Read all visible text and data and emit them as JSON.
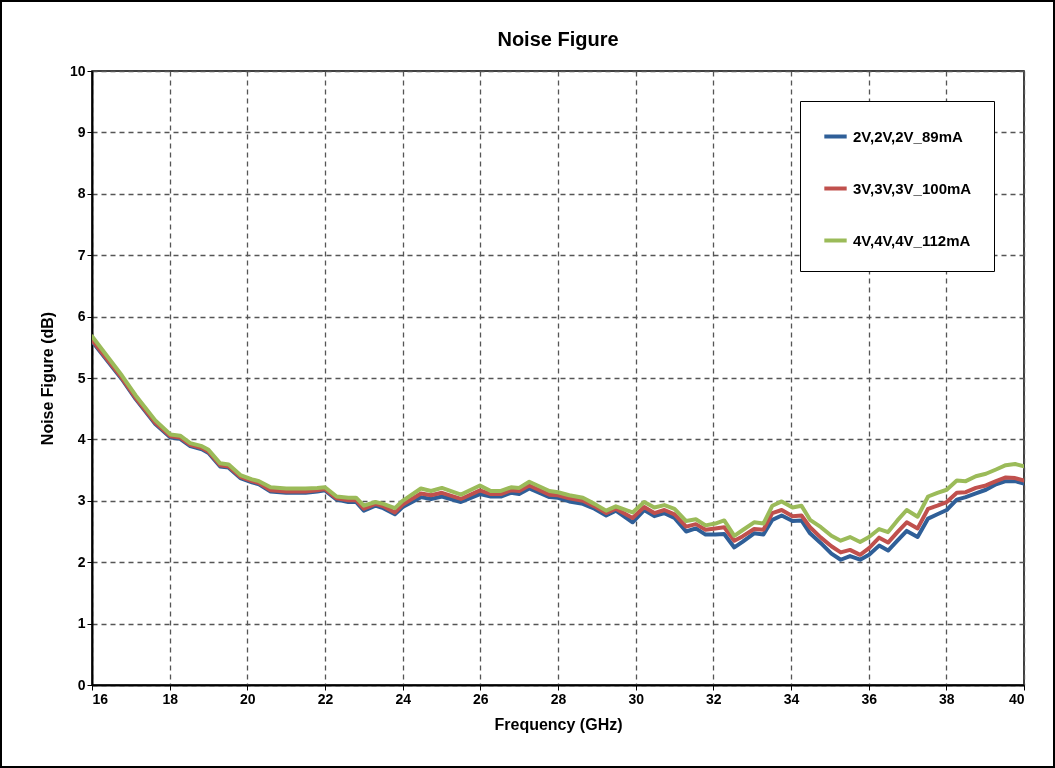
{
  "chart_data": {
    "type": "line",
    "title": "Noise Figure",
    "xlabel": "Frequency (GHz)",
    "ylabel": "Noise Figure (dB)",
    "x": [
      16,
      16.77,
      17.12,
      17.63,
      18.02,
      18.27,
      18.53,
      18.83,
      19.0,
      19.3,
      19.52,
      19.82,
      20.12,
      20.3,
      20.6,
      21,
      21.5,
      21.8,
      22,
      22.3,
      22.6,
      22.8,
      23,
      23.3,
      23.5,
      23.8,
      24.0,
      24.47,
      24.73,
      25.01,
      25.5,
      25.99,
      26.27,
      26.53,
      26.79,
      27.0,
      27.26,
      27.78,
      28.0,
      28.29,
      28.64,
      28.94,
      29.24,
      29.49,
      29.92,
      30.22,
      30.48,
      30.74,
      31.0,
      31.3,
      31.55,
      31.8,
      32.05,
      32.28,
      32.54,
      32.75,
      33.05,
      33.29,
      33.52,
      33.76,
      34.04,
      34.27,
      34.49,
      34.77,
      35.04,
      35.28,
      35.52,
      35.78,
      36.01,
      36.27,
      36.5,
      36.74,
      36.98,
      37.26,
      37.53,
      37.77,
      38.01,
      38.27,
      38.5,
      38.76,
      39.02,
      39.28,
      39.53,
      39.77,
      40
    ],
    "series": [
      {
        "name": "2V,2V,2V_89mA",
        "color": "#2f5f98",
        "values": [
          5.6,
          4.98,
          4.66,
          4.25,
          4.03,
          4.01,
          3.89,
          3.84,
          3.78,
          3.56,
          3.54,
          3.37,
          3.3,
          3.27,
          3.15,
          3.13,
          3.13,
          3.15,
          3.17,
          3.02,
          2.98,
          2.98,
          2.84,
          2.92,
          2.88,
          2.78,
          2.9,
          3.06,
          3.03,
          3.07,
          2.98,
          3.11,
          3.07,
          3.07,
          3.13,
          3.11,
          3.2,
          3.06,
          3.05,
          2.99,
          2.95,
          2.87,
          2.76,
          2.84,
          2.65,
          2.85,
          2.75,
          2.8,
          2.72,
          2.5,
          2.55,
          2.45,
          2.45,
          2.46,
          2.24,
          2.33,
          2.47,
          2.45,
          2.69,
          2.76,
          2.67,
          2.68,
          2.47,
          2.31,
          2.14,
          2.04,
          2.1,
          2.04,
          2.12,
          2.27,
          2.19,
          2.35,
          2.51,
          2.41,
          2.71,
          2.78,
          2.85,
          3.02,
          3.06,
          3.12,
          3.18,
          3.27,
          3.32,
          3.32,
          3.28
        ]
      },
      {
        "name": "3V,3V,3V_100mA",
        "color": "#c0504d",
        "values": [
          5.62,
          5.0,
          4.68,
          4.27,
          4.05,
          4.03,
          3.91,
          3.86,
          3.8,
          3.58,
          3.56,
          3.39,
          3.32,
          3.29,
          3.17,
          3.15,
          3.15,
          3.17,
          3.19,
          3.04,
          3.01,
          3.01,
          2.87,
          2.95,
          2.91,
          2.81,
          2.94,
          3.12,
          3.09,
          3.13,
          3.03,
          3.17,
          3.11,
          3.11,
          3.17,
          3.16,
          3.25,
          3.1,
          3.09,
          3.04,
          3.0,
          2.91,
          2.8,
          2.87,
          2.72,
          2.9,
          2.8,
          2.85,
          2.78,
          2.58,
          2.62,
          2.53,
          2.55,
          2.57,
          2.35,
          2.42,
          2.54,
          2.53,
          2.8,
          2.85,
          2.75,
          2.76,
          2.57,
          2.4,
          2.26,
          2.16,
          2.2,
          2.12,
          2.23,
          2.4,
          2.32,
          2.49,
          2.65,
          2.55,
          2.87,
          2.92,
          2.98,
          3.13,
          3.14,
          3.21,
          3.25,
          3.32,
          3.38,
          3.37,
          3.33
        ]
      },
      {
        "name": "4V,4V,4V_112mA",
        "color": "#9bbb59",
        "values": [
          5.68,
          5.04,
          4.72,
          4.31,
          4.08,
          4.06,
          3.94,
          3.89,
          3.83,
          3.61,
          3.59,
          3.42,
          3.35,
          3.32,
          3.22,
          3.2,
          3.2,
          3.21,
          3.22,
          3.07,
          3.05,
          3.05,
          2.92,
          2.98,
          2.95,
          2.88,
          3.0,
          3.2,
          3.16,
          3.21,
          3.1,
          3.25,
          3.16,
          3.16,
          3.22,
          3.21,
          3.31,
          3.16,
          3.14,
          3.09,
          3.05,
          2.95,
          2.84,
          2.91,
          2.81,
          2.98,
          2.89,
          2.93,
          2.87,
          2.67,
          2.7,
          2.6,
          2.63,
          2.68,
          2.43,
          2.52,
          2.65,
          2.63,
          2.92,
          2.99,
          2.89,
          2.92,
          2.69,
          2.57,
          2.43,
          2.35,
          2.41,
          2.33,
          2.41,
          2.54,
          2.49,
          2.68,
          2.85,
          2.74,
          3.07,
          3.13,
          3.18,
          3.33,
          3.32,
          3.4,
          3.44,
          3.51,
          3.58,
          3.6,
          3.56
        ]
      }
    ],
    "xlim": [
      16,
      40
    ],
    "xticks": [
      16,
      18,
      20,
      22,
      24,
      26,
      28,
      30,
      32,
      34,
      36,
      38,
      40
    ],
    "ylim": [
      0,
      10
    ],
    "yticks": [
      0,
      1,
      2,
      3,
      4,
      5,
      6,
      7,
      8,
      9,
      10
    ],
    "grid": true,
    "legend": "top right"
  }
}
